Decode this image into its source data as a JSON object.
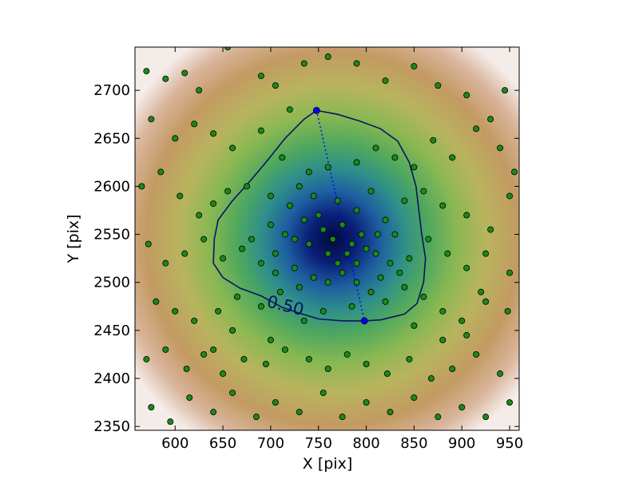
{
  "chart_data": {
    "type": "scatter",
    "xlabel": "X [pix]",
    "ylabel": "Y [pix]",
    "xlim": [
      558,
      960
    ],
    "ylim": [
      2346,
      2745
    ],
    "xticks": [
      600,
      650,
      700,
      750,
      800,
      850,
      900,
      950
    ],
    "yticks": [
      2350,
      2400,
      2450,
      2500,
      2550,
      2600,
      2650,
      2700
    ],
    "density_peak": [
      765,
      2545
    ],
    "contour": {
      "level_label": "0.50",
      "color": "#0a1464",
      "points": [
        [
          748,
          2679
        ],
        [
          770,
          2675
        ],
        [
          793,
          2668
        ],
        [
          815,
          2660
        ],
        [
          833,
          2647
        ],
        [
          845,
          2625
        ],
        [
          852,
          2600
        ],
        [
          855,
          2575
        ],
        [
          858,
          2550
        ],
        [
          862,
          2525
        ],
        [
          860,
          2500
        ],
        [
          853,
          2478
        ],
        [
          840,
          2467
        ],
        [
          815,
          2461
        ],
        [
          798,
          2460
        ],
        [
          775,
          2460
        ],
        [
          750,
          2462
        ],
        [
          730,
          2468
        ],
        [
          712,
          2474
        ],
        [
          690,
          2486
        ],
        [
          668,
          2494
        ],
        [
          650,
          2505
        ],
        [
          640,
          2520
        ],
        [
          641,
          2545
        ],
        [
          645,
          2565
        ],
        [
          660,
          2585
        ],
        [
          678,
          2605
        ],
        [
          695,
          2625
        ],
        [
          715,
          2650
        ],
        [
          735,
          2670
        ]
      ]
    },
    "major_axis": {
      "color": "#0000ff",
      "endpoints": [
        [
          748,
          2679
        ],
        [
          798,
          2460
        ]
      ]
    },
    "point_color": "#1a8a1a",
    "points": [
      [
        570,
        2720
      ],
      [
        590,
        2712
      ],
      [
        610,
        2718
      ],
      [
        625,
        2700
      ],
      [
        655,
        2745
      ],
      [
        690,
        2715
      ],
      [
        705,
        2705
      ],
      [
        720,
        2680
      ],
      [
        735,
        2728
      ],
      [
        760,
        2735
      ],
      [
        790,
        2728
      ],
      [
        820,
        2710
      ],
      [
        850,
        2725
      ],
      [
        875,
        2705
      ],
      [
        905,
        2695
      ],
      [
        930,
        2670
      ],
      [
        945,
        2700
      ],
      [
        575,
        2670
      ],
      [
        600,
        2650
      ],
      [
        620,
        2665
      ],
      [
        640,
        2655
      ],
      [
        660,
        2640
      ],
      [
        690,
        2658
      ],
      [
        712,
        2630
      ],
      [
        740,
        2615
      ],
      [
        760,
        2620
      ],
      [
        790,
        2625
      ],
      [
        810,
        2640
      ],
      [
        830,
        2630
      ],
      [
        850,
        2620
      ],
      [
        870,
        2648
      ],
      [
        890,
        2630
      ],
      [
        915,
        2660
      ],
      [
        940,
        2640
      ],
      [
        955,
        2615
      ],
      [
        565,
        2600
      ],
      [
        585,
        2615
      ],
      [
        605,
        2590
      ],
      [
        625,
        2570
      ],
      [
        640,
        2582
      ],
      [
        655,
        2595
      ],
      [
        675,
        2600
      ],
      [
        700,
        2590
      ],
      [
        720,
        2580
      ],
      [
        735,
        2565
      ],
      [
        750,
        2570
      ],
      [
        770,
        2585
      ],
      [
        790,
        2575
      ],
      [
        805,
        2595
      ],
      [
        820,
        2565
      ],
      [
        840,
        2585
      ],
      [
        860,
        2595
      ],
      [
        880,
        2580
      ],
      [
        905,
        2570
      ],
      [
        930,
        2555
      ],
      [
        950,
        2590
      ],
      [
        572,
        2540
      ],
      [
        590,
        2520
      ],
      [
        610,
        2530
      ],
      [
        630,
        2545
      ],
      [
        650,
        2525
      ],
      [
        670,
        2535
      ],
      [
        690,
        2520
      ],
      [
        705,
        2530
      ],
      [
        725,
        2545
      ],
      [
        740,
        2540
      ],
      [
        755,
        2555
      ],
      [
        765,
        2545
      ],
      [
        775,
        2560
      ],
      [
        785,
        2540
      ],
      [
        795,
        2550
      ],
      [
        810,
        2530
      ],
      [
        825,
        2520
      ],
      [
        845,
        2525
      ],
      [
        865,
        2545
      ],
      [
        885,
        2530
      ],
      [
        905,
        2515
      ],
      [
        925,
        2530
      ],
      [
        950,
        2510
      ],
      [
        580,
        2480
      ],
      [
        600,
        2470
      ],
      [
        620,
        2460
      ],
      [
        645,
        2470
      ],
      [
        665,
        2485
      ],
      [
        690,
        2475
      ],
      [
        710,
        2490
      ],
      [
        730,
        2495
      ],
      [
        745,
        2505
      ],
      [
        760,
        2500
      ],
      [
        775,
        2510
      ],
      [
        790,
        2500
      ],
      [
        805,
        2490
      ],
      [
        820,
        2480
      ],
      [
        840,
        2495
      ],
      [
        860,
        2485
      ],
      [
        880,
        2470
      ],
      [
        900,
        2460
      ],
      [
        925,
        2480
      ],
      [
        948,
        2470
      ],
      [
        570,
        2420
      ],
      [
        590,
        2430
      ],
      [
        612,
        2410
      ],
      [
        630,
        2425
      ],
      [
        650,
        2405
      ],
      [
        672,
        2420
      ],
      [
        695,
        2415
      ],
      [
        715,
        2430
      ],
      [
        740,
        2420
      ],
      [
        760,
        2410
      ],
      [
        780,
        2425
      ],
      [
        800,
        2415
      ],
      [
        822,
        2405
      ],
      [
        845,
        2420
      ],
      [
        868,
        2400
      ],
      [
        890,
        2410
      ],
      [
        915,
        2425
      ],
      [
        940,
        2405
      ],
      [
        575,
        2370
      ],
      [
        595,
        2355
      ],
      [
        615,
        2380
      ],
      [
        640,
        2365
      ],
      [
        660,
        2385
      ],
      [
        685,
        2360
      ],
      [
        705,
        2375
      ],
      [
        730,
        2365
      ],
      [
        755,
        2385
      ],
      [
        775,
        2360
      ],
      [
        800,
        2375
      ],
      [
        825,
        2365
      ],
      [
        850,
        2380
      ],
      [
        875,
        2360
      ],
      [
        900,
        2370
      ],
      [
        925,
        2360
      ],
      [
        950,
        2375
      ],
      [
        680,
        2545
      ],
      [
        700,
        2560
      ],
      [
        715,
        2550
      ],
      [
        730,
        2600
      ],
      [
        745,
        2590
      ],
      [
        760,
        2530
      ],
      [
        770,
        2520
      ],
      [
        780,
        2530
      ],
      [
        790,
        2520
      ],
      [
        800,
        2535
      ],
      [
        812,
        2550
      ],
      [
        830,
        2550
      ],
      [
        705,
        2510
      ],
      [
        725,
        2515
      ],
      [
        785,
        2475
      ],
      [
        755,
        2470
      ],
      [
        735,
        2460
      ],
      [
        815,
        2505
      ],
      [
        835,
        2510
      ],
      [
        850,
        2455
      ],
      [
        660,
        2450
      ],
      [
        700,
        2440
      ],
      [
        640,
        2430
      ],
      [
        880,
        2440
      ],
      [
        905,
        2445
      ],
      [
        920,
        2490
      ]
    ]
  }
}
